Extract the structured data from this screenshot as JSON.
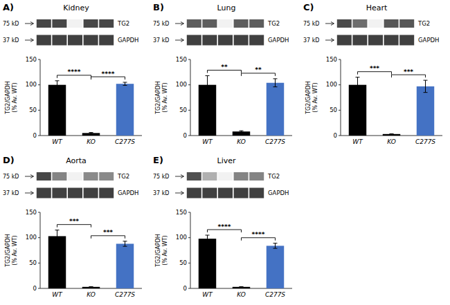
{
  "chart_data": [
    {
      "type": "bar",
      "label": "A)",
      "title": "Kidney",
      "ylabel": "TG2/GAPDH\n(% Av. WT)",
      "categories": [
        "WT",
        "KO",
        "C277S"
      ],
      "values": [
        100,
        5,
        102
      ],
      "errors": [
        8,
        1,
        3
      ],
      "colors": [
        "#000000",
        "#000000",
        "#4472c4"
      ],
      "ylim": [
        0,
        150
      ],
      "yticks": [
        0,
        50,
        100,
        150
      ],
      "annotations": [
        {
          "text": "****",
          "between": [
            "WT",
            "KO"
          ]
        },
        {
          "text": "****",
          "between": [
            "KO",
            "C277S"
          ]
        }
      ],
      "blot": [
        {
          "name": "TG2",
          "size": "75 kD",
          "values": [
            0.82,
            0.82,
            0.06,
            0.82,
            0.82
          ]
        },
        {
          "name": "GAPDH",
          "size": "37 kD",
          "values": [
            0.85,
            0.85,
            0.85,
            0.85,
            0.85
          ]
        }
      ]
    },
    {
      "type": "bar",
      "label": "B)",
      "title": "Lung",
      "ylabel": "TG2/GAPDH\n(% Av. WT)",
      "categories": [
        "WT",
        "KO",
        "C277S"
      ],
      "values": [
        100,
        8,
        104
      ],
      "errors": [
        18,
        1.5,
        8
      ],
      "colors": [
        "#000000",
        "#000000",
        "#4472c4"
      ],
      "ylim": [
        0,
        150
      ],
      "yticks": [
        0,
        50,
        100,
        150
      ],
      "annotations": [
        {
          "text": "**",
          "between": [
            "WT",
            "KO"
          ]
        },
        {
          "text": "**",
          "between": [
            "KO",
            "C277S"
          ]
        }
      ],
      "blot": [
        {
          "name": "TG2",
          "size": "75 kD",
          "values": [
            0.72,
            0.72,
            0.06,
            0.72,
            0.72
          ]
        },
        {
          "name": "GAPDH",
          "size": "37 kD",
          "values": [
            0.85,
            0.85,
            0.85,
            0.85,
            0.85
          ]
        }
      ]
    },
    {
      "type": "bar",
      "label": "C)",
      "title": "Heart",
      "ylabel": "TG2/GAPDH\n(% Av. WT)",
      "categories": [
        "WT",
        "KO",
        "C277S"
      ],
      "values": [
        100,
        3,
        97
      ],
      "errors": [
        15,
        0.5,
        12
      ],
      "colors": [
        "#000000",
        "#000000",
        "#4472c4"
      ],
      "ylim": [
        0,
        150
      ],
      "yticks": [
        0,
        50,
        100,
        150
      ],
      "annotations": [
        {
          "text": "***",
          "between": [
            "WT",
            "KO"
          ]
        },
        {
          "text": "***",
          "between": [
            "KO",
            "C277S"
          ]
        }
      ],
      "blot": [
        {
          "name": "TG2",
          "size": "75 kD",
          "values": [
            0.8,
            0.65,
            0.06,
            0.75,
            0.75
          ]
        },
        {
          "name": "GAPDH",
          "size": "37 kD",
          "values": [
            0.85,
            0.85,
            0.85,
            0.85,
            0.85
          ]
        }
      ]
    },
    {
      "type": "bar",
      "label": "D)",
      "title": "Aorta",
      "ylabel": "TG2/GAPDH\n(% Av. WT)",
      "categories": [
        "WT",
        "KO",
        "C277S"
      ],
      "values": [
        103,
        3,
        88
      ],
      "errors": [
        12,
        0.5,
        5
      ],
      "colors": [
        "#000000",
        "#000000",
        "#4472c4"
      ],
      "ylim": [
        0,
        150
      ],
      "yticks": [
        0,
        50,
        100,
        150
      ],
      "annotations": [
        {
          "text": "***",
          "between": [
            "WT",
            "KO"
          ]
        },
        {
          "text": "***",
          "between": [
            "KO",
            "C277S"
          ]
        }
      ],
      "blot": [
        {
          "name": "TG2",
          "size": "75 kD",
          "values": [
            0.82,
            0.55,
            0.06,
            0.52,
            0.52
          ]
        },
        {
          "name": "GAPDH",
          "size": "37 kD",
          "values": [
            0.85,
            0.85,
            0.85,
            0.85,
            0.85
          ]
        }
      ]
    },
    {
      "type": "bar",
      "label": "E)",
      "title": "Liver",
      "ylabel": "TG2/GAPDH\n(% Av. WT)",
      "categories": [
        "WT",
        "KO",
        "C277S"
      ],
      "values": [
        98,
        3,
        84
      ],
      "errors": [
        7,
        0.5,
        5
      ],
      "colors": [
        "#000000",
        "#000000",
        "#4472c4"
      ],
      "ylim": [
        0,
        150
      ],
      "yticks": [
        0,
        50,
        100,
        150
      ],
      "annotations": [
        {
          "text": "****",
          "between": [
            "WT",
            "KO"
          ]
        },
        {
          "text": "****",
          "between": [
            "KO",
            "C277S"
          ]
        }
      ],
      "blot": [
        {
          "name": "TG2",
          "size": "75 kD",
          "values": [
            0.78,
            0.35,
            0.06,
            0.55,
            0.55
          ]
        },
        {
          "name": "GAPDH",
          "size": "37 kD",
          "values": [
            0.85,
            0.85,
            0.85,
            0.85,
            0.85
          ]
        }
      ]
    }
  ]
}
